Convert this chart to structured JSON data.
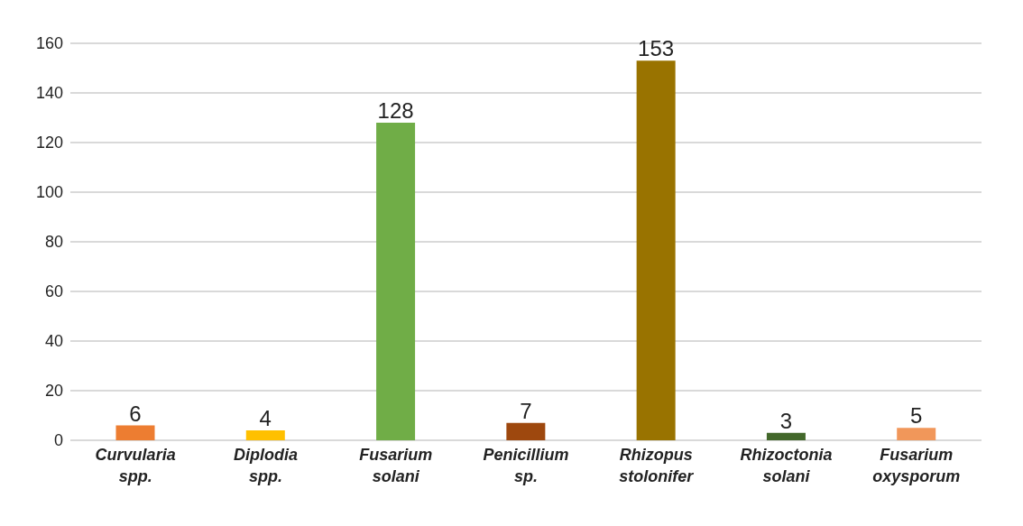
{
  "chart_data": {
    "type": "bar",
    "categories": [
      "Curvularia spp.",
      "Diplodia spp.",
      "Fusarium solani",
      "Penicillium sp.",
      "Rhizopus stolonifer",
      "Rhizoctonia solani",
      "Fusarium oxysporum"
    ],
    "values": [
      6,
      4,
      128,
      7,
      153,
      3,
      5
    ],
    "colors": [
      "#ed7d31",
      "#ffc000",
      "#70ad47",
      "#9e480e",
      "#997300",
      "#43682b",
      "#f1975a"
    ],
    "ylim": [
      0,
      160
    ],
    "yticks": [
      0,
      20,
      40,
      60,
      80,
      100,
      120,
      140,
      160
    ],
    "grid": "y",
    "data_labels": true
  }
}
